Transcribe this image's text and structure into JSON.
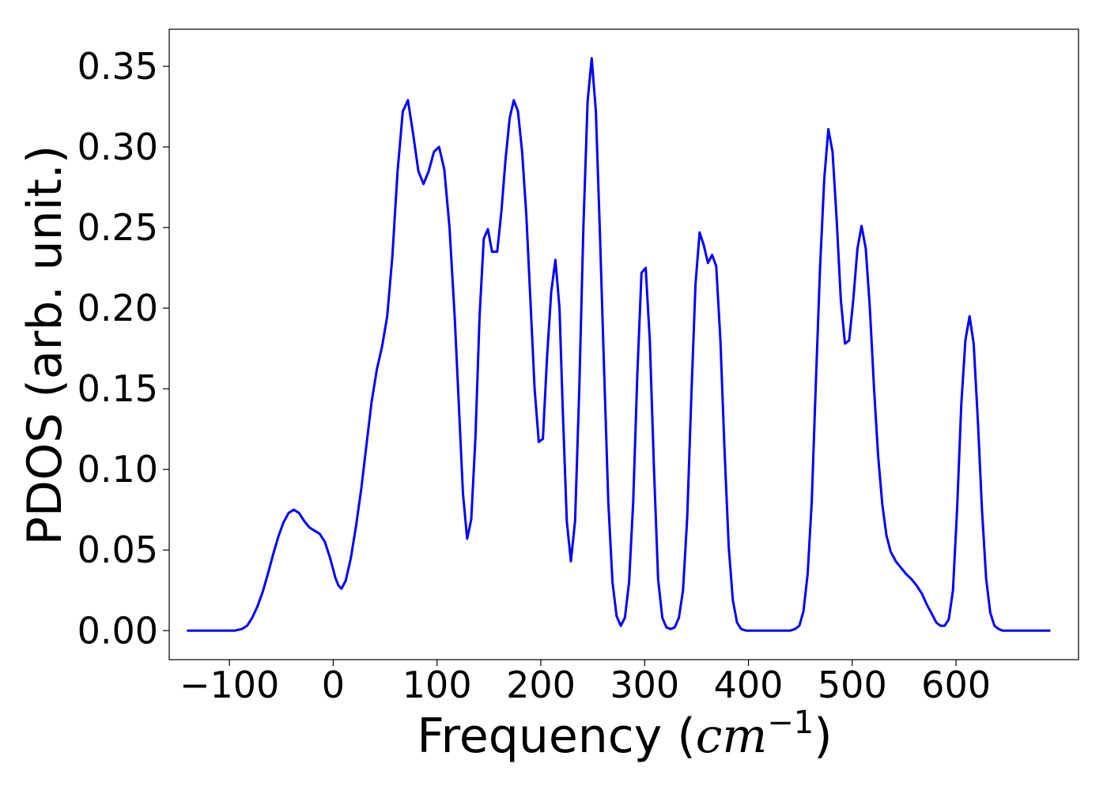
{
  "chart_data": {
    "type": "line",
    "title": "",
    "xlabel": "Frequency (cm^-1)",
    "xlabel_parts": {
      "prefix": "Frequency (",
      "italic_unit": "cm",
      "superscript": "−1",
      "suffix": ")"
    },
    "ylabel": "PDOS (arb. unit.)",
    "xlim": [
      -158,
      718
    ],
    "ylim": [
      -0.018,
      0.373
    ],
    "xticks": [
      -100,
      0,
      100,
      200,
      300,
      400,
      500,
      600
    ],
    "xtick_labels": [
      "−100",
      "0",
      "100",
      "200",
      "300",
      "400",
      "500",
      "600"
    ],
    "yticks": [
      0.0,
      0.05,
      0.1,
      0.15,
      0.2,
      0.25,
      0.3,
      0.35
    ],
    "ytick_labels": [
      "0.00",
      "0.05",
      "0.10",
      "0.15",
      "0.20",
      "0.25",
      "0.30",
      "0.35"
    ],
    "grid": false,
    "series": [
      {
        "color": "#0000ff",
        "points": [
          [
            -140,
            0.0
          ],
          [
            -110,
            0.0
          ],
          [
            -95,
            0.0
          ],
          [
            -88,
            0.001
          ],
          [
            -83,
            0.003
          ],
          [
            -78,
            0.008
          ],
          [
            -73,
            0.015
          ],
          [
            -68,
            0.024
          ],
          [
            -63,
            0.035
          ],
          [
            -58,
            0.047
          ],
          [
            -53,
            0.058
          ],
          [
            -48,
            0.067
          ],
          [
            -43,
            0.073
          ],
          [
            -38,
            0.075
          ],
          [
            -33,
            0.073
          ],
          [
            -28,
            0.068
          ],
          [
            -23,
            0.064
          ],
          [
            -18,
            0.062
          ],
          [
            -13,
            0.06
          ],
          [
            -8,
            0.055
          ],
          [
            -3,
            0.045
          ],
          [
            2,
            0.033
          ],
          [
            5,
            0.028
          ],
          [
            8,
            0.026
          ],
          [
            12,
            0.031
          ],
          [
            17,
            0.045
          ],
          [
            22,
            0.065
          ],
          [
            27,
            0.088
          ],
          [
            32,
            0.115
          ],
          [
            37,
            0.142
          ],
          [
            42,
            0.162
          ],
          [
            47,
            0.176
          ],
          [
            52,
            0.195
          ],
          [
            57,
            0.232
          ],
          [
            62,
            0.285
          ],
          [
            67,
            0.322
          ],
          [
            72,
            0.329
          ],
          [
            77,
            0.308
          ],
          [
            82,
            0.285
          ],
          [
            87,
            0.277
          ],
          [
            92,
            0.285
          ],
          [
            97,
            0.297
          ],
          [
            102,
            0.3
          ],
          [
            107,
            0.286
          ],
          [
            112,
            0.25
          ],
          [
            117,
            0.195
          ],
          [
            121,
            0.14
          ],
          [
            125,
            0.085
          ],
          [
            129,
            0.057
          ],
          [
            133,
            0.069
          ],
          [
            137,
            0.12
          ],
          [
            141,
            0.195
          ],
          [
            145,
            0.243
          ],
          [
            149,
            0.249
          ],
          [
            153,
            0.235
          ],
          [
            158,
            0.235
          ],
          [
            162,
            0.26
          ],
          [
            166,
            0.292
          ],
          [
            170,
            0.318
          ],
          [
            174,
            0.329
          ],
          [
            178,
            0.322
          ],
          [
            182,
            0.297
          ],
          [
            186,
            0.258
          ],
          [
            190,
            0.205
          ],
          [
            194,
            0.15
          ],
          [
            198,
            0.117
          ],
          [
            202,
            0.119
          ],
          [
            206,
            0.17
          ],
          [
            210,
            0.21
          ],
          [
            214,
            0.23
          ],
          [
            218,
            0.2
          ],
          [
            221,
            0.14
          ],
          [
            225,
            0.068
          ],
          [
            229,
            0.043
          ],
          [
            233,
            0.068
          ],
          [
            237,
            0.15
          ],
          [
            241,
            0.25
          ],
          [
            245,
            0.328
          ],
          [
            249,
            0.355
          ],
          [
            253,
            0.322
          ],
          [
            257,
            0.245
          ],
          [
            261,
            0.16
          ],
          [
            265,
            0.08
          ],
          [
            269,
            0.03
          ],
          [
            273,
            0.009
          ],
          [
            277,
            0.003
          ],
          [
            281,
            0.008
          ],
          [
            285,
            0.03
          ],
          [
            289,
            0.08
          ],
          [
            293,
            0.16
          ],
          [
            297,
            0.222
          ],
          [
            301,
            0.225
          ],
          [
            305,
            0.18
          ],
          [
            309,
            0.1
          ],
          [
            313,
            0.032
          ],
          [
            317,
            0.008
          ],
          [
            321,
            0.002
          ],
          [
            325,
            0.001
          ],
          [
            329,
            0.002
          ],
          [
            333,
            0.008
          ],
          [
            337,
            0.025
          ],
          [
            341,
            0.07
          ],
          [
            345,
            0.145
          ],
          [
            349,
            0.215
          ],
          [
            353,
            0.247
          ],
          [
            357,
            0.239
          ],
          [
            361,
            0.228
          ],
          [
            365,
            0.233
          ],
          [
            369,
            0.226
          ],
          [
            373,
            0.18
          ],
          [
            377,
            0.112
          ],
          [
            381,
            0.052
          ],
          [
            385,
            0.019
          ],
          [
            389,
            0.005
          ],
          [
            393,
            0.001
          ],
          [
            398,
            0.0
          ],
          [
            410,
            0.0
          ],
          [
            420,
            0.0
          ],
          [
            430,
            0.0
          ],
          [
            440,
            0.0
          ],
          [
            445,
            0.001
          ],
          [
            449,
            0.003
          ],
          [
            453,
            0.012
          ],
          [
            457,
            0.035
          ],
          [
            461,
            0.08
          ],
          [
            465,
            0.155
          ],
          [
            469,
            0.225
          ],
          [
            473,
            0.28
          ],
          [
            477,
            0.311
          ],
          [
            481,
            0.297
          ],
          [
            485,
            0.255
          ],
          [
            489,
            0.205
          ],
          [
            493,
            0.178
          ],
          [
            497,
            0.18
          ],
          [
            501,
            0.205
          ],
          [
            505,
            0.237
          ],
          [
            509,
            0.251
          ],
          [
            513,
            0.237
          ],
          [
            517,
            0.2
          ],
          [
            521,
            0.15
          ],
          [
            525,
            0.108
          ],
          [
            529,
            0.078
          ],
          [
            533,
            0.059
          ],
          [
            537,
            0.049
          ],
          [
            542,
            0.043
          ],
          [
            547,
            0.039
          ],
          [
            552,
            0.035
          ],
          [
            557,
            0.032
          ],
          [
            562,
            0.028
          ],
          [
            567,
            0.023
          ],
          [
            572,
            0.016
          ],
          [
            577,
            0.01
          ],
          [
            581,
            0.005
          ],
          [
            585,
            0.003
          ],
          [
            589,
            0.003
          ],
          [
            593,
            0.007
          ],
          [
            597,
            0.025
          ],
          [
            601,
            0.075
          ],
          [
            605,
            0.14
          ],
          [
            609,
            0.18
          ],
          [
            613,
            0.195
          ],
          [
            617,
            0.178
          ],
          [
            621,
            0.13
          ],
          [
            625,
            0.075
          ],
          [
            629,
            0.032
          ],
          [
            633,
            0.011
          ],
          [
            637,
            0.003
          ],
          [
            641,
            0.001
          ],
          [
            645,
            0.0
          ],
          [
            660,
            0.0
          ],
          [
            680,
            0.0
          ],
          [
            690,
            0.0
          ]
        ]
      }
    ]
  }
}
